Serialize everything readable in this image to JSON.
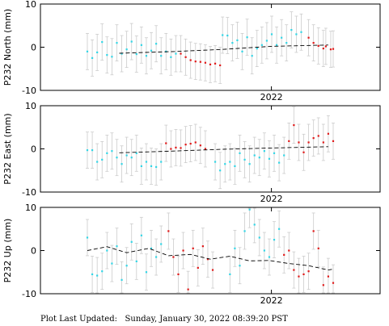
{
  "footer": {
    "label": "Plot Last Updated:",
    "timestamp": "Sunday, January 30, 2022 08:39:20 PST"
  },
  "colors": {
    "cyan_points": "#33d6e6",
    "red_points": "#e01a1a",
    "error_bars": "#cccccc",
    "trend_line": "#000000",
    "axes": "#000000"
  },
  "chart_data": [
    {
      "type": "scatter",
      "ylabel": "P232 North (mm)",
      "xlabel": "2022",
      "ylim": [
        -10,
        10
      ],
      "yticks": [
        10,
        0,
        -10
      ],
      "grid": false,
      "trend": [
        [
          0.13,
          -1.4
        ],
        [
          0.35,
          -1.0
        ],
        [
          0.55,
          -0.5
        ],
        [
          0.75,
          0.2
        ],
        [
          0.98,
          0.5
        ]
      ],
      "series": [
        {
          "color": "cyan",
          "x": [
            0.0,
            0.02,
            0.04,
            0.06,
            0.08,
            0.1,
            0.12,
            0.14,
            0.16,
            0.18,
            0.2,
            0.22,
            0.24,
            0.26,
            0.28,
            0.3,
            0.32,
            0.34,
            0.36,
            0.55,
            0.57,
            0.59,
            0.61,
            0.63,
            0.65,
            0.67,
            0.69,
            0.71,
            0.73,
            0.75,
            0.77,
            0.79,
            0.81,
            0.83,
            0.85,
            0.87
          ],
          "y": [
            -1.0,
            -2.5,
            -1.2,
            1.2,
            -1.8,
            -2.2,
            1.0,
            -1.5,
            -0.5,
            1.3,
            -1.6,
            0.5,
            -2.0,
            -0.8,
            0.8,
            -2.0,
            -1.0,
            -2.3,
            -1.5,
            2.8,
            2.7,
            1.0,
            1.6,
            -1.0,
            2.3,
            -2.0,
            -0.3,
            0.5,
            1.5,
            3.0,
            0.5,
            2.2,
            1.0,
            4.0,
            3.0,
            3.5
          ]
        },
        {
          "color": "red",
          "x": [
            0.38,
            0.4,
            0.42,
            0.44,
            0.46,
            0.48,
            0.5,
            0.52,
            0.54,
            0.9,
            0.92,
            0.94,
            0.96,
            0.97,
            0.99,
            1.0
          ],
          "y": [
            -1.5,
            -2.3,
            -3.0,
            -3.3,
            -3.4,
            -3.6,
            -4.0,
            -3.8,
            -4.2,
            2.2,
            1.0,
            0.3,
            -0.3,
            0.2,
            -0.5,
            -0.4
          ]
        }
      ]
    },
    {
      "type": "scatter",
      "ylabel": "P232 East (mm)",
      "xlabel": "2022",
      "ylim": [
        -10,
        10
      ],
      "yticks": [
        10,
        0,
        -10
      ],
      "grid": false,
      "trend": [
        [
          0.13,
          -0.9
        ],
        [
          0.35,
          -0.5
        ],
        [
          0.55,
          -0.1
        ],
        [
          0.75,
          0.2
        ],
        [
          0.98,
          0.5
        ]
      ],
      "series": [
        {
          "color": "cyan",
          "x": [
            0.0,
            0.02,
            0.04,
            0.06,
            0.08,
            0.1,
            0.12,
            0.14,
            0.16,
            0.18,
            0.2,
            0.22,
            0.24,
            0.26,
            0.28,
            0.3,
            0.52,
            0.54,
            0.56,
            0.58,
            0.6,
            0.62,
            0.64,
            0.66,
            0.68,
            0.7,
            0.72,
            0.74,
            0.76,
            0.78,
            0.8
          ],
          "y": [
            -0.3,
            -0.3,
            -3.0,
            -2.5,
            -1.0,
            -0.5,
            -2.0,
            -3.5,
            -1.5,
            -2.0,
            -1.0,
            -4.0,
            -3.0,
            -4.0,
            -4.2,
            -3.0,
            -3.0,
            -5.0,
            -3.5,
            -3.0,
            -4.0,
            -1.0,
            -2.5,
            -3.5,
            -1.5,
            -2.0,
            -0.5,
            -2.3,
            -1.0,
            -3.2,
            -1.5
          ]
        },
        {
          "color": "red",
          "x": [
            0.32,
            0.34,
            0.36,
            0.38,
            0.4,
            0.42,
            0.44,
            0.46,
            0.48,
            0.82,
            0.84,
            0.86,
            0.88,
            0.9,
            0.92,
            0.94,
            0.96,
            0.98,
            1.0
          ],
          "y": [
            1.3,
            0.0,
            0.3,
            0.2,
            1.0,
            1.2,
            1.5,
            0.8,
            0.0,
            1.8,
            5.5,
            1.5,
            -0.8,
            1.5,
            2.5,
            3.0,
            1.5,
            3.5,
            1.8
          ]
        }
      ]
    },
    {
      "type": "scatter",
      "ylabel": "P232 Up (mm)",
      "xlabel": "2022",
      "ylim": [
        -10,
        10
      ],
      "yticks": [
        10,
        0,
        -10
      ],
      "grid": false,
      "trend": [
        [
          0.0,
          0.0
        ],
        [
          0.08,
          0.9
        ],
        [
          0.16,
          -0.5
        ],
        [
          0.25,
          0.5
        ],
        [
          0.33,
          -1.2
        ],
        [
          0.42,
          -0.9
        ],
        [
          0.5,
          -2.0
        ],
        [
          0.58,
          -1.3
        ],
        [
          0.66,
          -2.4
        ],
        [
          0.74,
          -2.3
        ],
        [
          0.82,
          -3.0
        ],
        [
          0.9,
          -3.5
        ],
        [
          0.98,
          -4.5
        ],
        [
          1.0,
          -4.3
        ]
      ],
      "series": [
        {
          "color": "cyan",
          "x": [
            0.0,
            0.02,
            0.04,
            0.06,
            0.08,
            0.1,
            0.12,
            0.14,
            0.16,
            0.18,
            0.2,
            0.22,
            0.24,
            0.26,
            0.28,
            0.3,
            0.58,
            0.6,
            0.62,
            0.64,
            0.66,
            0.68,
            0.7,
            0.72,
            0.74,
            0.76,
            0.78
          ],
          "y": [
            3.0,
            -5.5,
            -5.8,
            -4.8,
            0.0,
            -3.0,
            1.0,
            -6.8,
            -3.5,
            2.0,
            -2.5,
            3.5,
            -5.0,
            0.5,
            -1.5,
            1.5,
            -5.5,
            0.5,
            -3.5,
            4.5,
            9.5,
            6.0,
            3.0,
            0.0,
            -1.5,
            2.5,
            5.0
          ]
        },
        {
          "color": "red",
          "x": [
            0.33,
            0.35,
            0.37,
            0.39,
            0.41,
            0.43,
            0.45,
            0.47,
            0.49,
            0.51,
            0.8,
            0.82,
            0.84,
            0.86,
            0.88,
            0.9,
            0.92,
            0.94,
            0.96,
            0.98,
            1.0
          ],
          "y": [
            4.5,
            -1.5,
            -5.5,
            0.0,
            -9.0,
            0.5,
            -4.0,
            1.0,
            -2.0,
            -4.5,
            -1.0,
            0.0,
            -4.5,
            -6.0,
            -5.5,
            -4.8,
            4.5,
            0.5,
            -8.0,
            -6.0,
            -7.5
          ]
        }
      ]
    }
  ]
}
